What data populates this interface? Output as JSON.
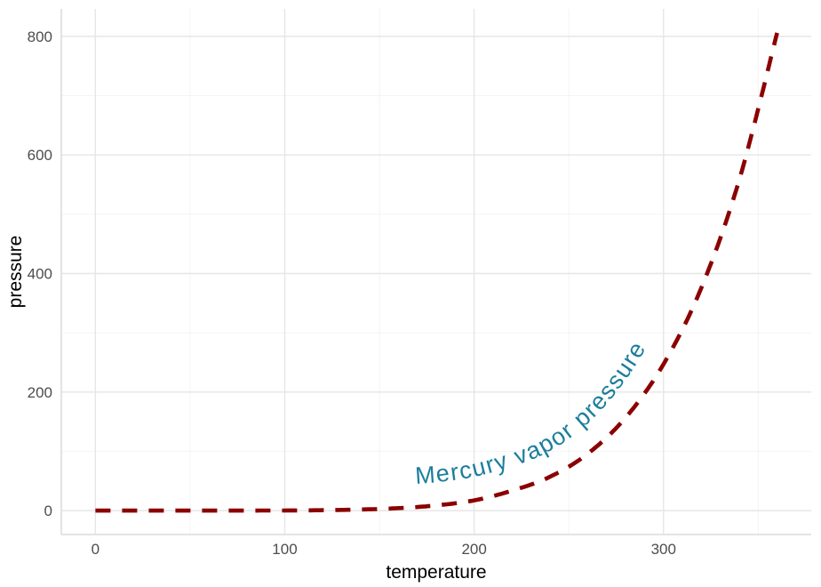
{
  "chart_data": {
    "type": "line",
    "title": "",
    "xlabel": "temperature",
    "ylabel": "pressure",
    "series_label": "Mercury vapor pressure",
    "x": [
      0,
      20,
      40,
      60,
      80,
      100,
      120,
      140,
      160,
      180,
      200,
      220,
      240,
      260,
      280,
      300,
      320,
      340,
      360
    ],
    "y": [
      0.0002,
      0.0012,
      0.006,
      0.03,
      0.09,
      0.27,
      0.75,
      1.85,
      4.2,
      8.8,
      17.3,
      33.7,
      57,
      96,
      157,
      247,
      376,
      558,
      806
    ],
    "x_ticks": [
      0,
      100,
      200,
      300
    ],
    "y_ticks": [
      0,
      200,
      400,
      600,
      800
    ],
    "x_minor_ticks": [
      50,
      150,
      250,
      350
    ],
    "y_minor_ticks": [
      100,
      300,
      500,
      700
    ],
    "xlim": [
      -18,
      378
    ],
    "ylim": [
      -40.3,
      846.3
    ],
    "line_color": "#8B0000",
    "line_style": "dashed",
    "label_color": "#1B7E9C",
    "grid": "on",
    "legend": "none",
    "background": "#FFFFFF",
    "grid_major_color": "#E6E6E6",
    "grid_minor_color": "#F2F2F2",
    "axis_line_color": "#DCDCDC",
    "tick_label_color": "#4D4D4D",
    "axis_title_color": "#000000"
  }
}
